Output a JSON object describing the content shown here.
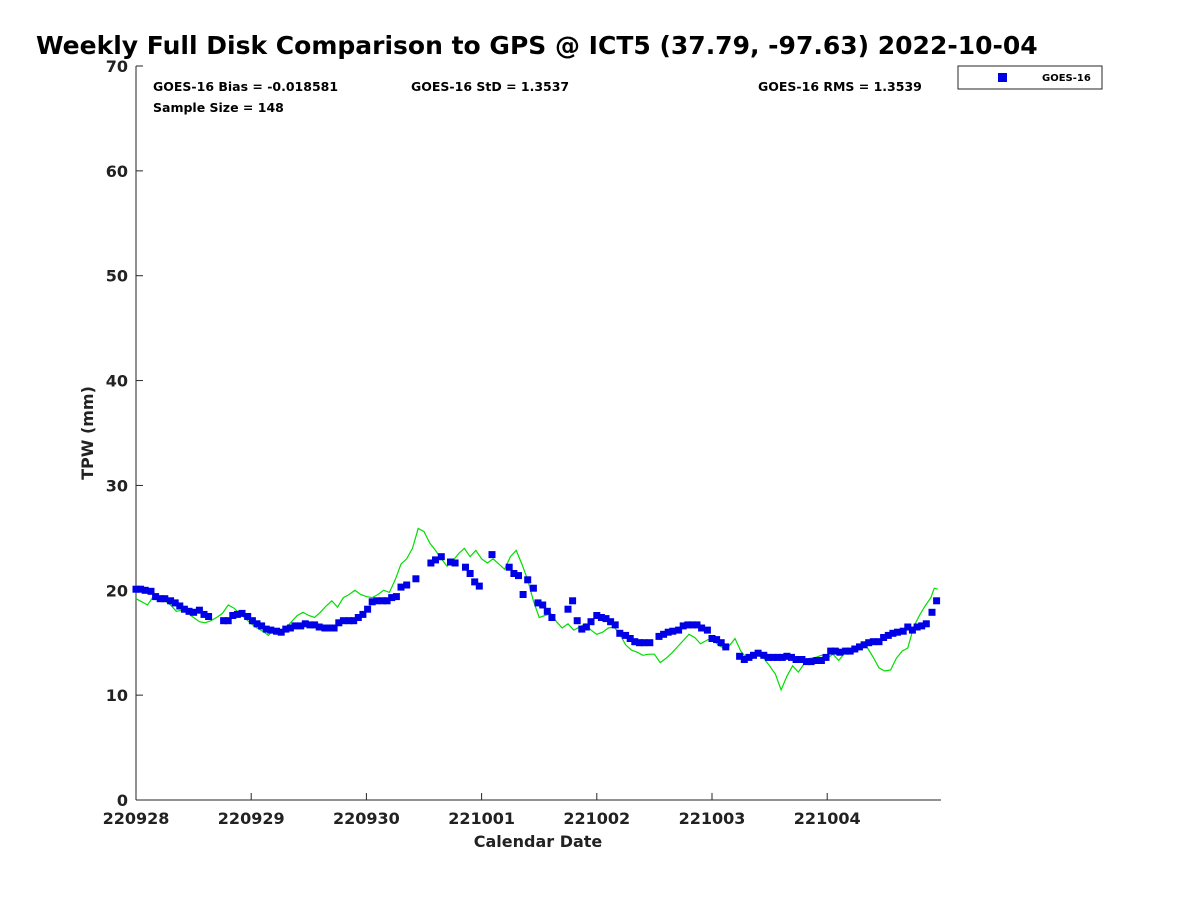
{
  "chart_data": {
    "type": "scatter",
    "title": "Weekly Full Disk Comparison to GPS @ ICT5 (37.79, -97.63) 2022-10-04",
    "xlabel": "Calendar Date",
    "ylabel": "TPW (mm)",
    "ylim": [
      0,
      70
    ],
    "yticks": [
      0,
      10,
      20,
      30,
      40,
      50,
      60,
      70
    ],
    "xlim": [
      0,
      6.98
    ],
    "xtick_labels": [
      "220928",
      "220929",
      "220930",
      "221001",
      "221002",
      "221003",
      "221004"
    ],
    "stats": {
      "bias": "GOES-16 Bias = -0.018581",
      "std": "GOES-16 StD = 1.3537",
      "rms": "GOES-16 RMS = 1.3539",
      "sample": "Sample Size = 148"
    },
    "legend": {
      "label": "GOES-16",
      "placement": "top-right, outside plot"
    },
    "colors": {
      "goes": "#0000e6",
      "gps": "#00dd00",
      "axis": "#262626"
    },
    "series": [
      {
        "name": "GOES-16",
        "kind": "markers",
        "points": [
          [
            0.0,
            20.1
          ],
          [
            0.04,
            20.1
          ],
          [
            0.08,
            20.0
          ],
          [
            0.13,
            19.9
          ],
          [
            0.17,
            19.4
          ],
          [
            0.21,
            19.2
          ],
          [
            0.25,
            19.2
          ],
          [
            0.3,
            19.0
          ],
          [
            0.34,
            18.8
          ],
          [
            0.38,
            18.5
          ],
          [
            0.42,
            18.2
          ],
          [
            0.46,
            18.0
          ],
          [
            0.5,
            17.9
          ],
          [
            0.55,
            18.1
          ],
          [
            0.59,
            17.7
          ],
          [
            0.63,
            17.5
          ],
          [
            0.76,
            17.1
          ],
          [
            0.8,
            17.1
          ],
          [
            0.84,
            17.6
          ],
          [
            0.88,
            17.7
          ],
          [
            0.92,
            17.8
          ],
          [
            0.97,
            17.5
          ],
          [
            1.01,
            17.1
          ],
          [
            1.05,
            16.8
          ],
          [
            1.09,
            16.6
          ],
          [
            1.13,
            16.3
          ],
          [
            1.17,
            16.2
          ],
          [
            1.22,
            16.1
          ],
          [
            1.26,
            16.0
          ],
          [
            1.3,
            16.3
          ],
          [
            1.34,
            16.4
          ],
          [
            1.38,
            16.6
          ],
          [
            1.43,
            16.6
          ],
          [
            1.47,
            16.8
          ],
          [
            1.51,
            16.7
          ],
          [
            1.55,
            16.7
          ],
          [
            1.59,
            16.5
          ],
          [
            1.64,
            16.4
          ],
          [
            1.68,
            16.4
          ],
          [
            1.72,
            16.4
          ],
          [
            1.76,
            16.9
          ],
          [
            1.8,
            17.1
          ],
          [
            1.85,
            17.1
          ],
          [
            1.89,
            17.1
          ],
          [
            1.93,
            17.4
          ],
          [
            1.97,
            17.7
          ],
          [
            2.01,
            18.2
          ],
          [
            2.05,
            18.9
          ],
          [
            2.09,
            19.0
          ],
          [
            2.14,
            19.0
          ],
          [
            2.18,
            19.0
          ],
          [
            2.22,
            19.3
          ],
          [
            2.26,
            19.4
          ],
          [
            2.3,
            20.3
          ],
          [
            2.35,
            20.5
          ],
          [
            2.43,
            21.1
          ],
          [
            2.56,
            22.6
          ],
          [
            2.6,
            22.9
          ],
          [
            2.65,
            23.2
          ],
          [
            2.73,
            22.7
          ],
          [
            2.77,
            22.6
          ],
          [
            2.86,
            22.2
          ],
          [
            2.9,
            21.6
          ],
          [
            2.94,
            20.8
          ],
          [
            2.98,
            20.4
          ],
          [
            3.09,
            23.4
          ],
          [
            3.24,
            22.2
          ],
          [
            3.28,
            21.6
          ],
          [
            3.32,
            21.4
          ],
          [
            3.36,
            19.6
          ],
          [
            3.4,
            21.0
          ],
          [
            3.45,
            20.2
          ],
          [
            3.49,
            18.8
          ],
          [
            3.53,
            18.6
          ],
          [
            3.57,
            18.0
          ],
          [
            3.61,
            17.4
          ],
          [
            3.75,
            18.2
          ],
          [
            3.79,
            19.0
          ],
          [
            3.83,
            17.1
          ],
          [
            3.87,
            16.3
          ],
          [
            3.91,
            16.5
          ],
          [
            3.95,
            17.0
          ],
          [
            4.0,
            17.6
          ],
          [
            4.04,
            17.4
          ],
          [
            4.08,
            17.3
          ],
          [
            4.12,
            17.0
          ],
          [
            4.16,
            16.7
          ],
          [
            4.2,
            15.9
          ],
          [
            4.25,
            15.7
          ],
          [
            4.29,
            15.4
          ],
          [
            4.33,
            15.1
          ],
          [
            4.37,
            15.0
          ],
          [
            4.41,
            15.0
          ],
          [
            4.46,
            15.0
          ],
          [
            4.54,
            15.6
          ],
          [
            4.58,
            15.8
          ],
          [
            4.62,
            16.0
          ],
          [
            4.66,
            16.1
          ],
          [
            4.71,
            16.2
          ],
          [
            4.75,
            16.6
          ],
          [
            4.79,
            16.7
          ],
          [
            4.83,
            16.7
          ],
          [
            4.87,
            16.7
          ],
          [
            4.91,
            16.4
          ],
          [
            4.96,
            16.2
          ],
          [
            5.0,
            15.4
          ],
          [
            5.04,
            15.3
          ],
          [
            5.08,
            15.0
          ],
          [
            5.12,
            14.6
          ],
          [
            5.24,
            13.7
          ],
          [
            5.28,
            13.4
          ],
          [
            5.32,
            13.6
          ],
          [
            5.36,
            13.8
          ],
          [
            5.4,
            14.0
          ],
          [
            5.45,
            13.8
          ],
          [
            5.49,
            13.6
          ],
          [
            5.53,
            13.6
          ],
          [
            5.57,
            13.6
          ],
          [
            5.61,
            13.6
          ],
          [
            5.65,
            13.7
          ],
          [
            5.69,
            13.6
          ],
          [
            5.73,
            13.4
          ],
          [
            5.78,
            13.4
          ],
          [
            5.82,
            13.2
          ],
          [
            5.86,
            13.2
          ],
          [
            5.91,
            13.3
          ],
          [
            5.95,
            13.3
          ],
          [
            5.99,
            13.6
          ],
          [
            6.03,
            14.2
          ],
          [
            6.07,
            14.2
          ],
          [
            6.11,
            14.1
          ],
          [
            6.16,
            14.2
          ],
          [
            6.2,
            14.2
          ],
          [
            6.24,
            14.4
          ],
          [
            6.28,
            14.6
          ],
          [
            6.32,
            14.8
          ],
          [
            6.36,
            15.0
          ],
          [
            6.4,
            15.1
          ],
          [
            6.45,
            15.1
          ],
          [
            6.49,
            15.5
          ],
          [
            6.53,
            15.7
          ],
          [
            6.57,
            15.9
          ],
          [
            6.61,
            16.0
          ],
          [
            6.66,
            16.1
          ],
          [
            6.7,
            16.5
          ],
          [
            6.74,
            16.2
          ],
          [
            6.78,
            16.5
          ],
          [
            6.82,
            16.6
          ],
          [
            6.86,
            16.8
          ],
          [
            6.91,
            17.9
          ],
          [
            6.95,
            19.0
          ]
        ]
      },
      {
        "name": "GPS",
        "kind": "line",
        "points": [
          [
            0.0,
            19.2
          ],
          [
            0.05,
            18.9
          ],
          [
            0.1,
            18.6
          ],
          [
            0.15,
            19.4
          ],
          [
            0.2,
            19.0
          ],
          [
            0.25,
            19.0
          ],
          [
            0.3,
            18.6
          ],
          [
            0.35,
            18.0
          ],
          [
            0.4,
            18.1
          ],
          [
            0.45,
            17.8
          ],
          [
            0.5,
            17.4
          ],
          [
            0.55,
            17.0
          ],
          [
            0.6,
            16.9
          ],
          [
            0.65,
            17.1
          ],
          [
            0.7,
            17.4
          ],
          [
            0.75,
            17.8
          ],
          [
            0.8,
            18.6
          ],
          [
            0.85,
            18.3
          ],
          [
            0.9,
            17.8
          ],
          [
            0.95,
            17.3
          ],
          [
            1.0,
            16.8
          ],
          [
            1.05,
            16.4
          ],
          [
            1.1,
            16.1
          ],
          [
            1.15,
            15.7
          ],
          [
            1.2,
            16.3
          ],
          [
            1.25,
            16.0
          ],
          [
            1.3,
            16.4
          ],
          [
            1.35,
            17.0
          ],
          [
            1.4,
            17.6
          ],
          [
            1.45,
            17.9
          ],
          [
            1.5,
            17.6
          ],
          [
            1.55,
            17.4
          ],
          [
            1.6,
            17.9
          ],
          [
            1.65,
            18.5
          ],
          [
            1.7,
            19.0
          ],
          [
            1.75,
            18.4
          ],
          [
            1.8,
            19.3
          ],
          [
            1.85,
            19.6
          ],
          [
            1.9,
            20.0
          ],
          [
            1.95,
            19.6
          ],
          [
            2.0,
            19.4
          ],
          [
            2.05,
            19.3
          ],
          [
            2.1,
            19.6
          ],
          [
            2.15,
            20.0
          ],
          [
            2.2,
            19.8
          ],
          [
            2.25,
            21.0
          ],
          [
            2.3,
            22.5
          ],
          [
            2.35,
            23.0
          ],
          [
            2.4,
            24.0
          ],
          [
            2.45,
            25.9
          ],
          [
            2.5,
            25.6
          ],
          [
            2.55,
            24.5
          ],
          [
            2.6,
            23.8
          ],
          [
            2.65,
            23.0
          ],
          [
            2.7,
            22.3
          ],
          [
            2.75,
            22.8
          ],
          [
            2.8,
            23.5
          ],
          [
            2.85,
            24.0
          ],
          [
            2.9,
            23.2
          ],
          [
            2.95,
            23.8
          ],
          [
            3.0,
            23.0
          ],
          [
            3.05,
            22.6
          ],
          [
            3.1,
            23.0
          ],
          [
            3.15,
            22.5
          ],
          [
            3.2,
            22.0
          ],
          [
            3.25,
            23.2
          ],
          [
            3.3,
            23.8
          ],
          [
            3.35,
            22.5
          ],
          [
            3.4,
            21.0
          ],
          [
            3.45,
            19.0
          ],
          [
            3.5,
            17.4
          ],
          [
            3.55,
            17.6
          ],
          [
            3.6,
            17.8
          ],
          [
            3.65,
            17.0
          ],
          [
            3.7,
            16.4
          ],
          [
            3.75,
            16.8
          ],
          [
            3.8,
            16.2
          ],
          [
            3.85,
            16.5
          ],
          [
            3.9,
            16.8
          ],
          [
            3.95,
            16.2
          ],
          [
            4.0,
            15.8
          ],
          [
            4.05,
            16.0
          ],
          [
            4.1,
            16.4
          ],
          [
            4.15,
            16.5
          ],
          [
            4.2,
            15.8
          ],
          [
            4.25,
            14.8
          ],
          [
            4.3,
            14.3
          ],
          [
            4.35,
            14.1
          ],
          [
            4.4,
            13.8
          ],
          [
            4.45,
            13.9
          ],
          [
            4.5,
            13.9
          ],
          [
            4.55,
            13.1
          ],
          [
            4.6,
            13.5
          ],
          [
            4.65,
            14.0
          ],
          [
            4.7,
            14.6
          ],
          [
            4.75,
            15.2
          ],
          [
            4.8,
            15.8
          ],
          [
            4.85,
            15.5
          ],
          [
            4.9,
            14.9
          ],
          [
            4.95,
            15.2
          ],
          [
            5.0,
            15.5
          ],
          [
            5.05,
            14.8
          ],
          [
            5.1,
            14.5
          ],
          [
            5.15,
            14.7
          ],
          [
            5.2,
            15.4
          ],
          [
            5.25,
            14.2
          ],
          [
            5.3,
            13.5
          ],
          [
            5.35,
            13.5
          ],
          [
            5.4,
            13.8
          ],
          [
            5.45,
            13.5
          ],
          [
            5.5,
            12.8
          ],
          [
            5.55,
            12.0
          ],
          [
            5.6,
            10.5
          ],
          [
            5.65,
            11.8
          ],
          [
            5.7,
            12.8
          ],
          [
            5.75,
            12.2
          ],
          [
            5.8,
            13.0
          ],
          [
            5.85,
            13.5
          ],
          [
            5.9,
            13.6
          ],
          [
            5.95,
            13.8
          ],
          [
            6.0,
            13.5
          ],
          [
            6.05,
            13.9
          ],
          [
            6.1,
            13.3
          ],
          [
            6.15,
            14.0
          ],
          [
            6.2,
            14.3
          ],
          [
            6.25,
            14.5
          ],
          [
            6.3,
            14.8
          ],
          [
            6.35,
            14.5
          ],
          [
            6.4,
            13.6
          ],
          [
            6.45,
            12.6
          ],
          [
            6.5,
            12.3
          ],
          [
            6.55,
            12.4
          ],
          [
            6.6,
            13.5
          ],
          [
            6.65,
            14.2
          ],
          [
            6.7,
            14.5
          ],
          [
            6.75,
            16.5
          ],
          [
            6.8,
            17.6
          ],
          [
            6.85,
            18.5
          ],
          [
            6.9,
            19.3
          ],
          [
            6.93,
            20.2
          ],
          [
            6.96,
            20.1
          ]
        ]
      }
    ]
  }
}
